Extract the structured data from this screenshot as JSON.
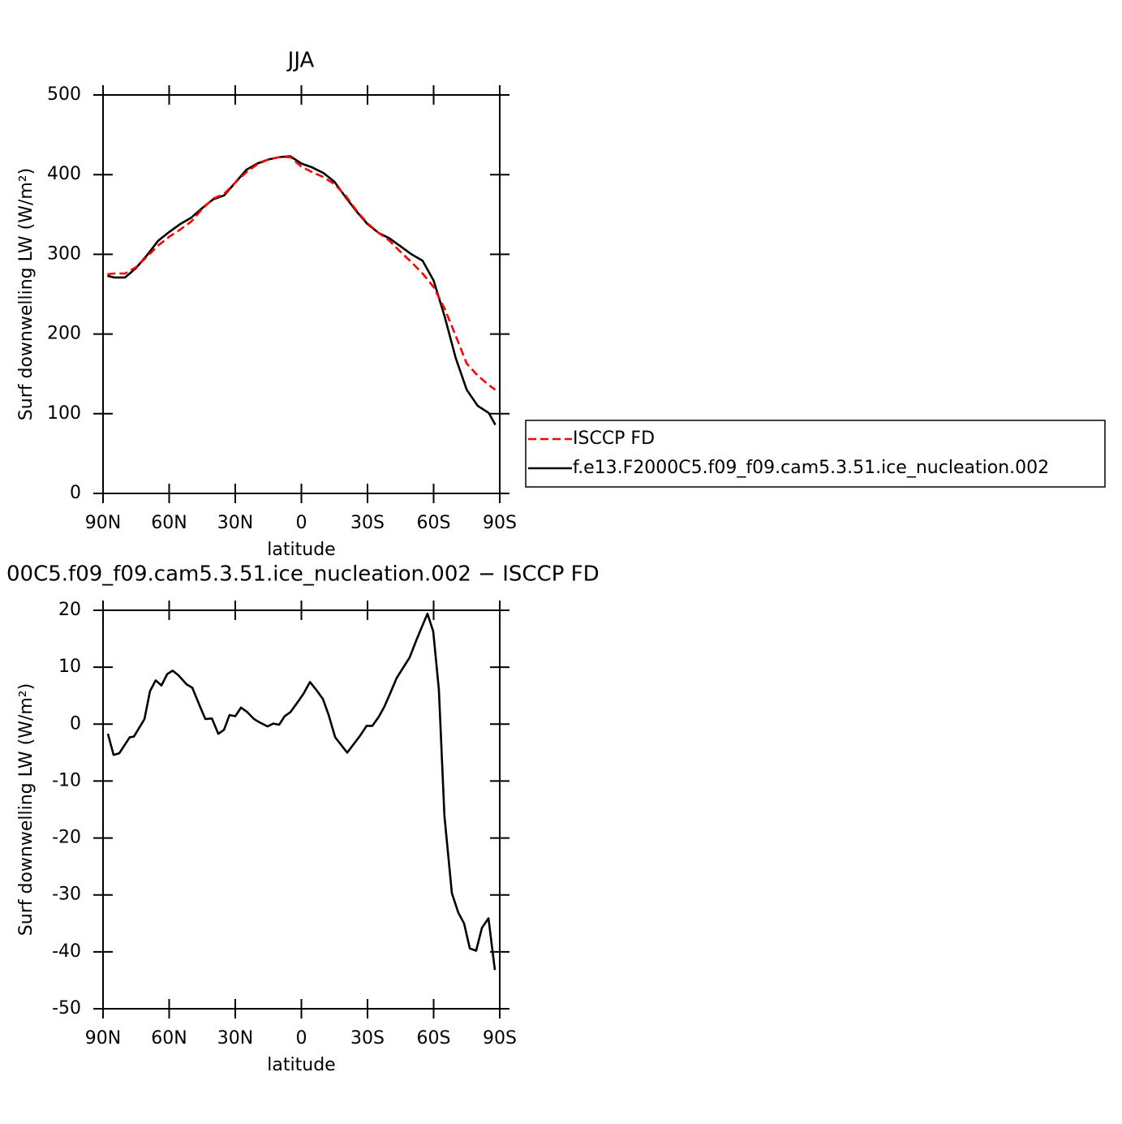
{
  "chart_data": [
    {
      "type": "line",
      "title": "JJA",
      "xlabel": "latitude",
      "ylabel": "Surf downwelling LW (W/m²)",
      "x": [
        88,
        85,
        80,
        75,
        70,
        65,
        60,
        55,
        50,
        45,
        40,
        35,
        30,
        25,
        20,
        15,
        10,
        5,
        0,
        -5,
        -10,
        -15,
        -20,
        -25,
        -30,
        -35,
        -40,
        -45,
        -50,
        -55,
        -60,
        -65,
        -70,
        -75,
        -80,
        -85,
        -88
      ],
      "series": [
        {
          "name": "ISCCP FD",
          "color": "#ff0000",
          "dashed": true,
          "values": [
            275,
            276,
            276,
            284,
            297,
            311,
            322,
            331,
            341,
            357,
            370,
            376,
            390,
            403,
            413,
            419,
            422,
            422,
            410,
            403,
            397,
            388,
            374,
            355,
            339,
            327,
            317,
            303,
            290,
            276,
            259,
            232,
            198,
            163,
            148,
            136,
            130
          ]
        },
        {
          "name": "f.e13.F2000C5.f09_f09.cam5.3.51.ice_nucleation.002",
          "color": "#000000",
          "values": [
            273,
            271,
            271,
            283,
            299,
            317,
            328,
            338,
            346,
            358,
            369,
            374,
            390,
            406,
            414,
            419,
            422,
            423,
            414,
            409,
            402,
            391,
            372,
            354,
            338,
            327,
            320,
            310,
            300,
            292,
            267,
            222,
            170,
            130,
            110,
            101,
            86
          ]
        }
      ],
      "xlim": [
        90,
        -90
      ],
      "xticks": [
        {
          "value": 90,
          "label": "90N"
        },
        {
          "value": 60,
          "label": "60N"
        },
        {
          "value": 30,
          "label": "30N"
        },
        0,
        {
          "value": -30,
          "label": "30S"
        },
        {
          "value": -60,
          "label": "60S"
        },
        {
          "value": -90,
          "label": "90S"
        }
      ],
      "ylim": [
        0,
        500
      ],
      "yticks": [
        0,
        100,
        200,
        300,
        400,
        500
      ],
      "legend": "right"
    },
    {
      "type": "line",
      "title": "00C5.f09_f09.cam5.3.51.ice_nucleation.002 − ISCCP FD",
      "xlabel": "latitude",
      "ylabel": "Surf downwelling LW (W/m²)",
      "x": [
        87.8,
        85.2,
        82.6,
        77.9,
        76.0,
        71.2,
        68.7,
        66.1,
        63.5,
        60.9,
        58.4,
        55.8,
        52.1,
        49.5,
        45.8,
        43.6,
        40.6,
        37.7,
        35.1,
        32.6,
        30.0,
        27.4,
        24.5,
        21.5,
        18.9,
        15.3,
        12.7,
        10.1,
        7.6,
        5.0,
        2.0,
        -0.9,
        -3.9,
        -6.8,
        -9.8,
        -12.3,
        -15.3,
        -20.8,
        -26.7,
        -29.6,
        -32.2,
        -35.1,
        -37.7,
        -40.6,
        -43.2,
        -49.1,
        -52.4,
        -54.6,
        -57.2,
        -59.8,
        -62.4,
        -64.9,
        -68.3,
        -71.2,
        -73.8,
        -76.4,
        -79.3,
        -81.9,
        -84.9,
        -87.8
      ],
      "color": "#000000",
      "values": [
        -1.7,
        -5.4,
        -5.1,
        -2.3,
        -2.2,
        0.9,
        5.8,
        7.7,
        6.8,
        8.8,
        9.4,
        8.6,
        7,
        6.4,
        2.9,
        0.9,
        1,
        -1.7,
        -1,
        1.6,
        1.4,
        2.9,
        2.1,
        0.9,
        0.3,
        -0.4,
        0.1,
        -0.1,
        1.4,
        2.1,
        3.7,
        5.3,
        7.4,
        6,
        4.4,
        1.7,
        -2.3,
        -5,
        -2,
        -0.3,
        -0.3,
        1.3,
        3.1,
        5.7,
        8.1,
        11.7,
        15,
        17,
        19.4,
        16.3,
        6,
        -16.1,
        -29.7,
        -33.1,
        -35,
        -39.4,
        -39.8,
        -35.8,
        -34.1,
        -43.2
      ],
      "xlim": [
        90,
        -90
      ],
      "xticks": [
        {
          "value": 90,
          "label": "90N"
        },
        {
          "value": 60,
          "label": "60N"
        },
        {
          "value": 30,
          "label": "30N"
        },
        0,
        {
          "value": -30,
          "label": "30S"
        },
        {
          "value": -60,
          "label": "60S"
        },
        {
          "value": -90,
          "label": "90S"
        }
      ],
      "ylim": [
        -50,
        20
      ],
      "yticks": [
        -50,
        -40,
        -30,
        -20,
        -10,
        0,
        10,
        20
      ]
    }
  ]
}
